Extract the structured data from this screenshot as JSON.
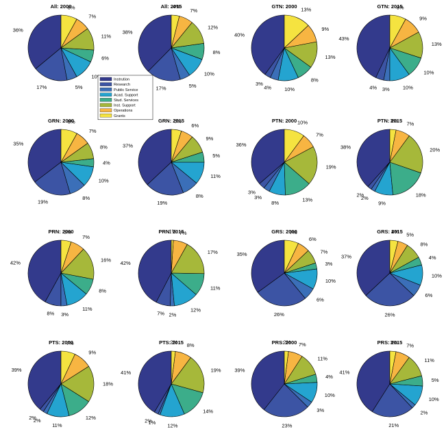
{
  "chart_data": {
    "type": "pie",
    "legend": {
      "placement": "between-charts",
      "entries": [
        "Instrution",
        "Research",
        "Public Service",
        "Acad. Support",
        "Stud. Services",
        "Inst. Support",
        "Operations",
        "Grants"
      ]
    },
    "colors": [
      "#333a8c",
      "#3c54a4",
      "#3b6fb8",
      "#24a4d0",
      "#3cad8a",
      "#a6b83a",
      "#f7b542",
      "#f5e340"
    ],
    "charts": [
      {
        "title": "All: 2000",
        "values": [
          36,
          17,
          5,
          10,
          6,
          11,
          7,
          8
        ],
        "labels": [
          "36%",
          "17%",
          "5%",
          "10%",
          "6%",
          "11%",
          "7%",
          "8%"
        ]
      },
      {
        "title": "All: 2015",
        "values": [
          38,
          17,
          5,
          10,
          8,
          12,
          7,
          4
        ],
        "labels": [
          "38%",
          "17%",
          "5%",
          "10%",
          "8%",
          "12%",
          "7%",
          "4%"
        ]
      },
      {
        "title": "GTN: 2000",
        "values": [
          40,
          3,
          4,
          10,
          8,
          13,
          9,
          13
        ],
        "labels": [
          "40%",
          "3%",
          "4%",
          "10%",
          "8%",
          "13%",
          "9%",
          "13%"
        ]
      },
      {
        "title": "GTN: 2015",
        "values": [
          43,
          4,
          3,
          10,
          10,
          13,
          9,
          8
        ],
        "labels": [
          "43%",
          "4%",
          "3%",
          "10%",
          "10%",
          "13%",
          "9%",
          "8%"
        ]
      },
      {
        "title": "GRN: 2000",
        "values": [
          35,
          19,
          8,
          10,
          4,
          8,
          7,
          8
        ],
        "labels": [
          "35%",
          "19%",
          "8%",
          "10%",
          "4%",
          "8%",
          "7%",
          "8%"
        ]
      },
      {
        "title": "GRN: 2015",
        "values": [
          37,
          19,
          8,
          11,
          5,
          9,
          6,
          5
        ],
        "labels": [
          "37%",
          "19%",
          "8%",
          "11%",
          "5%",
          "9%",
          "6%",
          "5%"
        ]
      },
      {
        "title": "PTN: 2000",
        "values": [
          36,
          3,
          3,
          8,
          13,
          19,
          7,
          10
        ],
        "labels": [
          "36%",
          "3%",
          "3%",
          "8%",
          "13%",
          "19%",
          "7%",
          "10%"
        ]
      },
      {
        "title": "PTN: 2015",
        "values": [
          38,
          2,
          2,
          9,
          18,
          20,
          7,
          3
        ],
        "labels": [
          "38%",
          "2%",
          "2%",
          "9%",
          "18%",
          "20%",
          "7%",
          "3%"
        ]
      },
      {
        "title": "PRN: 2000",
        "values": [
          42,
          8,
          3,
          11,
          8,
          16,
          7,
          5
        ],
        "labels": [
          "42%",
          "8%",
          "3%",
          "11%",
          "8%",
          "16%",
          "7%",
          "5%"
        ]
      },
      {
        "title": "PRN: 2015",
        "values": [
          42,
          7,
          2,
          12,
          11,
          17,
          7,
          1
        ],
        "labels": [
          "42%",
          "7%",
          "2%",
          "12%",
          "11%",
          "17%",
          "7%",
          "1%"
        ]
      },
      {
        "title": "GRS: 2000",
        "values": [
          35,
          26,
          6,
          10,
          3,
          7,
          6,
          7
        ],
        "labels": [
          "35%",
          "26%",
          "6%",
          "10%",
          "3%",
          "7%",
          "6%",
          "7%"
        ]
      },
      {
        "title": "GRS: 2015",
        "values": [
          37,
          26,
          6,
          10,
          4,
          8,
          5,
          4
        ],
        "labels": [
          "37%",
          "26%",
          "6%",
          "10%",
          "4%",
          "8%",
          "5%",
          "4%"
        ]
      },
      {
        "title": "PTS: 2000",
        "values": [
          39,
          2,
          2,
          11,
          12,
          18,
          9,
          7
        ],
        "labels": [
          "39%",
          "2%",
          "2%",
          "11%",
          "12%",
          "18%",
          "9%",
          "7%"
        ]
      },
      {
        "title": "PTS: 2015",
        "values": [
          41,
          2,
          1,
          12,
          14,
          19,
          8,
          2
        ],
        "labels": [
          "41%",
          "2%",
          "1%",
          "12%",
          "14%",
          "19%",
          "8%",
          "2%"
        ]
      },
      {
        "title": "PRS: 2000",
        "values": [
          39,
          23,
          3,
          10,
          4,
          11,
          7,
          2
        ],
        "labels": [
          "39%",
          "23%",
          "3%",
          "10%",
          "4%",
          "11%",
          "7%",
          "2%"
        ]
      },
      {
        "title": "PRS: 2015",
        "values": [
          41,
          21,
          2,
          10,
          5,
          11,
          7,
          3
        ],
        "labels": [
          "41%",
          "21%",
          "2%",
          "10%",
          "5%",
          "11%",
          "7%",
          "3%"
        ]
      }
    ]
  }
}
